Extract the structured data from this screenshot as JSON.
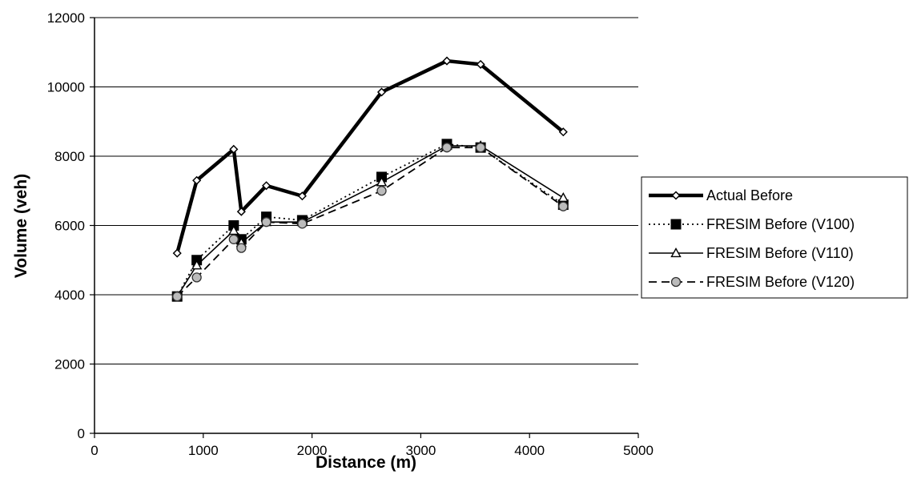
{
  "chart_data": {
    "type": "line",
    "xlabel": "Distance (m)",
    "ylabel": "Volume (veh)",
    "xlim": [
      0,
      5000
    ],
    "ylim": [
      0,
      12000
    ],
    "xticks": [
      0,
      1000,
      2000,
      3000,
      4000,
      5000
    ],
    "yticks": [
      0,
      2000,
      4000,
      6000,
      8000,
      10000,
      12000
    ],
    "grid": "horizontal",
    "legend_position": "right",
    "series": [
      {
        "name": "Actual Before",
        "style": "thick-solid",
        "marker": "diamond",
        "color": "#000000",
        "points": [
          [
            760,
            5200
          ],
          [
            940,
            7300
          ],
          [
            1280,
            8200
          ],
          [
            1350,
            6400
          ],
          [
            1580,
            7150
          ],
          [
            1910,
            6850
          ],
          [
            2640,
            9850
          ],
          [
            3240,
            10750
          ],
          [
            3550,
            10650
          ],
          [
            4310,
            8700
          ]
        ]
      },
      {
        "name": "FRESIM Before (V100)",
        "style": "dotted",
        "marker": "square",
        "color": "#000000",
        "points": [
          [
            760,
            3950
          ],
          [
            940,
            5000
          ],
          [
            1280,
            6000
          ],
          [
            1350,
            5600
          ],
          [
            1580,
            6250
          ],
          [
            1910,
            6150
          ],
          [
            2640,
            7400
          ],
          [
            3240,
            8350
          ],
          [
            3550,
            8250
          ],
          [
            4310,
            6600
          ]
        ]
      },
      {
        "name": "FRESIM Before (V110)",
        "style": "solid",
        "marker": "triangle",
        "color": "#000000",
        "points": [
          [
            760,
            3950
          ],
          [
            940,
            4850
          ],
          [
            1280,
            5850
          ],
          [
            1350,
            5500
          ],
          [
            1580,
            6100
          ],
          [
            1910,
            6100
          ],
          [
            2640,
            7250
          ],
          [
            3240,
            8300
          ],
          [
            3550,
            8300
          ],
          [
            4310,
            6800
          ]
        ]
      },
      {
        "name": "FRESIM Before (V120)",
        "style": "dashed",
        "marker": "circle",
        "color": "#000000",
        "points": [
          [
            760,
            3950
          ],
          [
            940,
            4500
          ],
          [
            1280,
            5600
          ],
          [
            1350,
            5350
          ],
          [
            1580,
            6100
          ],
          [
            1910,
            6050
          ],
          [
            2640,
            7000
          ],
          [
            3240,
            8250
          ],
          [
            3550,
            8250
          ],
          [
            4310,
            6550
          ]
        ]
      }
    ]
  }
}
